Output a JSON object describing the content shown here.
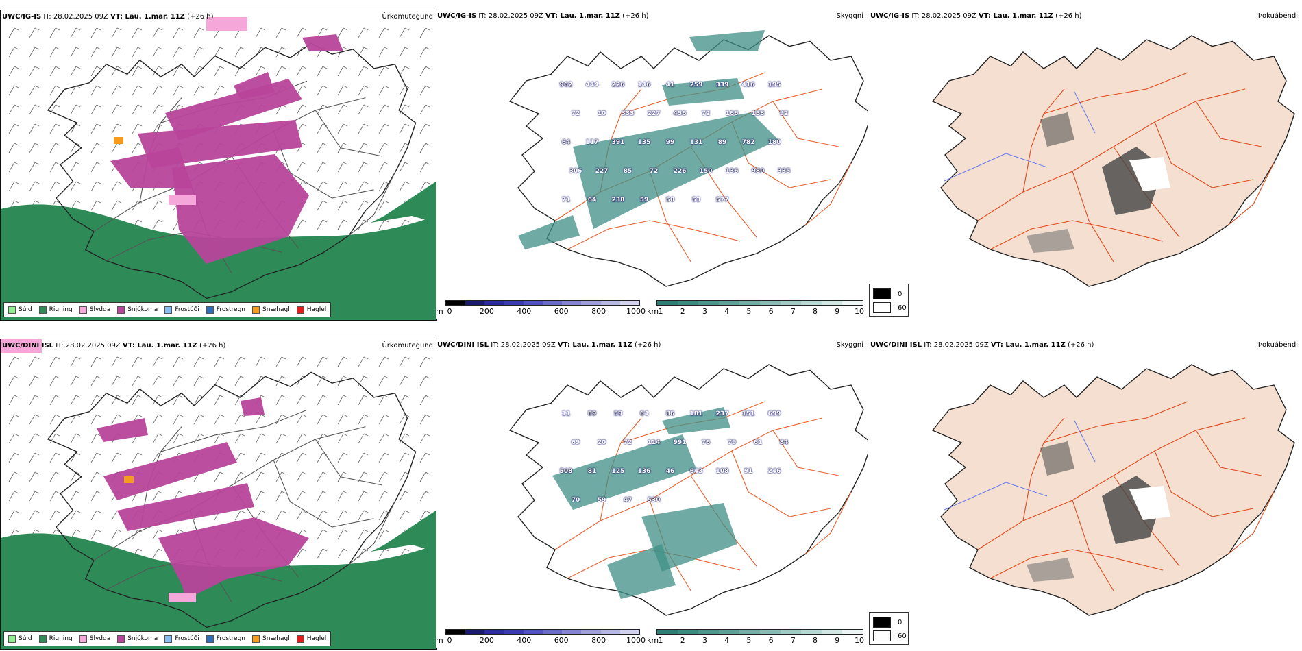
{
  "rows": [
    {
      "precip": {
        "model": "UWC/IG-IS",
        "it_label": " IT: 28.02.2025 09Z ",
        "vt_label": "VT: Lau. 1.mar. 11Z",
        "lead": " (+26 h)",
        "corner": "Úrkomutegund"
      },
      "vis": {
        "model": "UWC/IG-IS",
        "it_label": " IT: 28.02.2025 09Z ",
        "vt_label": "VT: Lau. 1.mar. 11Z",
        "lead": " (+26 h)",
        "corner": "Skyggni",
        "labels": [
          "962",
          "444",
          "226",
          "146",
          "41",
          "259",
          "339",
          "416",
          "195",
          "72",
          "10",
          "333",
          "227",
          "456",
          "72",
          "166",
          "158",
          "92",
          "64",
          "117",
          "391",
          "135",
          "99",
          "131",
          "89",
          "782",
          "180",
          "306",
          "227",
          "85",
          "72",
          "226",
          "150",
          "136",
          "980",
          "335",
          "71",
          "64",
          "238",
          "59",
          "50",
          "53",
          "577"
        ]
      },
      "cloud": {
        "model": "UWC/IG-IS",
        "it_label": " IT: 28.02.2025 09Z ",
        "vt_label": "VT: Lau. 1.mar. 11Z",
        "lead": " (+26 h)",
        "corner": "Þokuábendi"
      }
    },
    {
      "precip": {
        "model": "UWC/DINI ISL",
        "it_label": " IT: 28.02.2025 09Z ",
        "vt_label": "VT: Lau. 1.mar. 11Z",
        "lead": " (+26 h)",
        "corner": "Úrkomutegund"
      },
      "vis": {
        "model": "UWC/DINI ISL",
        "it_label": " IT: 28.02.2025 09Z ",
        "vt_label": "VT: Lau. 1.mar. 11Z",
        "lead": " (+26 h)",
        "corner": "Skyggni",
        "labels": [
          "11",
          "89",
          "59",
          "64",
          "86",
          "181",
          "237",
          "151",
          "699",
          "69",
          "20",
          "72",
          "114",
          "991",
          "76",
          "79",
          "61",
          "84",
          "508",
          "81",
          "125",
          "136",
          "46",
          "643",
          "108",
          "91",
          "246",
          "70",
          "59",
          "47",
          "530"
        ]
      },
      "cloud": {
        "model": "UWC/DINI ISL",
        "it_label": " IT: 28.02.2025 09Z ",
        "vt_label": "VT: Lau. 1.mar. 11Z",
        "lead": " (+26 h)",
        "corner": "Þokuábendi"
      }
    }
  ],
  "precip_legend": [
    {
      "label": "Súld",
      "color": "#90ee90"
    },
    {
      "label": "Rigning",
      "color": "#2e8b57"
    },
    {
      "label": "Slydda",
      "color": "#f4a7d8"
    },
    {
      "label": "Snjókoma",
      "color": "#b8459b"
    },
    {
      "label": "Frostúði",
      "color": "#87bdf0"
    },
    {
      "label": "Frostregn",
      "color": "#2f6fb8"
    },
    {
      "label": "Snæhagl",
      "color": "#f59b1e"
    },
    {
      "label": "Haglél",
      "color": "#e21b1b"
    }
  ],
  "height_bar": {
    "unit": "m",
    "ticks": [
      "0",
      "200",
      "400",
      "600",
      "800",
      "1000"
    ],
    "colors": [
      "#000000",
      "#1a1a6e",
      "#2a2a9a",
      "#3b3bb0",
      "#5050bf",
      "#6a6ac9",
      "#8484d2",
      "#9e9edb",
      "#b8b8e4",
      "#d2d2ee"
    ]
  },
  "vis_bar": {
    "unit": "km",
    "ticks": [
      "1",
      "2",
      "3",
      "4",
      "5",
      "6",
      "7",
      "8",
      "9",
      "10"
    ],
    "colors": [
      "#2e7d74",
      "#3a8a80",
      "#4b958c",
      "#5ea198",
      "#73aea6",
      "#89bcb5",
      "#a0cbc5",
      "#b8dad5",
      "#d2e8e5",
      "#eef6f5"
    ]
  },
  "cloud_legend": {
    "dark": "0",
    "light": "60"
  },
  "colors": {
    "snow": "#b8459b",
    "rain": "#2e8b57",
    "sleet": "#f4a7d8",
    "visfog": "#3f8f86",
    "landcloud": "#f4dfd0",
    "road": "#e8602c",
    "coast": "#222222",
    "river": "#6677ee"
  }
}
